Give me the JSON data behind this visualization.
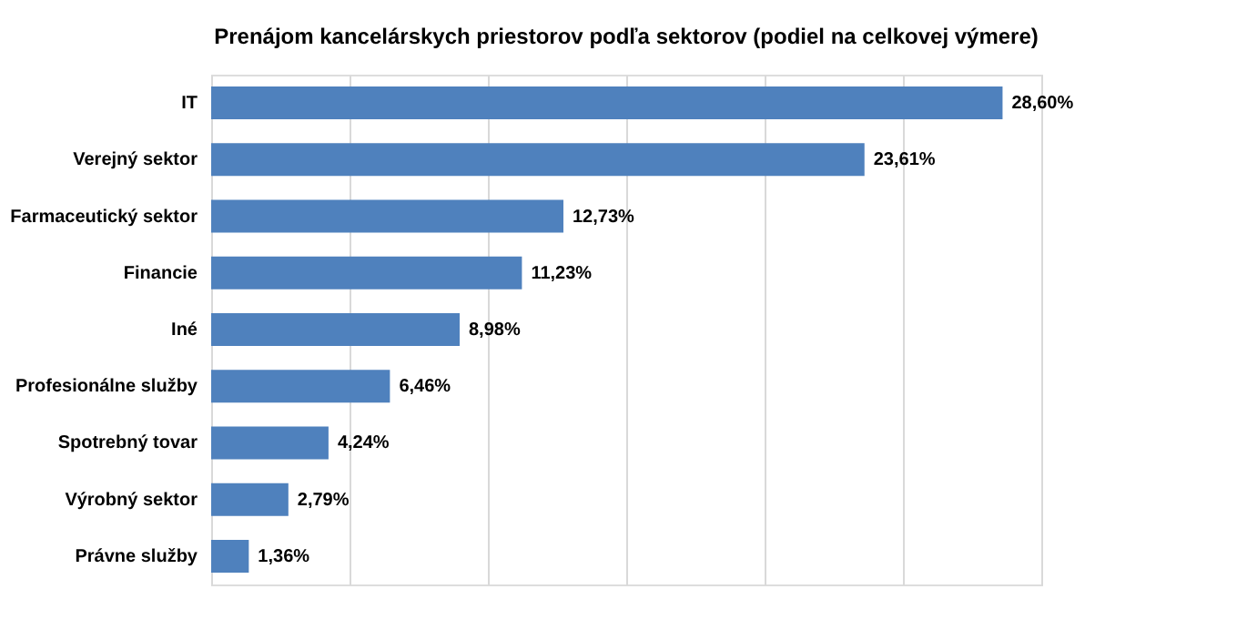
{
  "chart_data": {
    "type": "bar",
    "orientation": "horizontal",
    "title": "Prenájom kancelárskych priestorov podľa sektorov (podiel na celkovej výmere)",
    "categories": [
      "IT",
      "Verejný sektor",
      "Farmaceutický sektor",
      "Financie",
      "Iné",
      "Profesionálne služby",
      "Spotrebný tovar",
      "Výrobný sektor",
      "Právne služby"
    ],
    "values": [
      28.6,
      23.61,
      12.73,
      11.23,
      8.98,
      6.46,
      4.24,
      2.79,
      1.36
    ],
    "value_labels": [
      "28,60%",
      "23,61%",
      "12,73%",
      "11,23%",
      "8,98%",
      "6,46%",
      "4,24%",
      "2,79%",
      "1,36%"
    ],
    "color": "#4f81bd",
    "xlim": [
      0,
      30
    ],
    "xticks": [
      {
        "value": 0,
        "label": null
      },
      {
        "value": 5,
        "label": null
      },
      {
        "value": 10,
        "label": null
      },
      {
        "value": 15,
        "label": null
      },
      {
        "value": 20,
        "label": null
      },
      {
        "value": 25,
        "label": null
      },
      {
        "value": 30,
        "label": null
      }
    ],
    "grid": "x",
    "tick_labels": "y"
  }
}
